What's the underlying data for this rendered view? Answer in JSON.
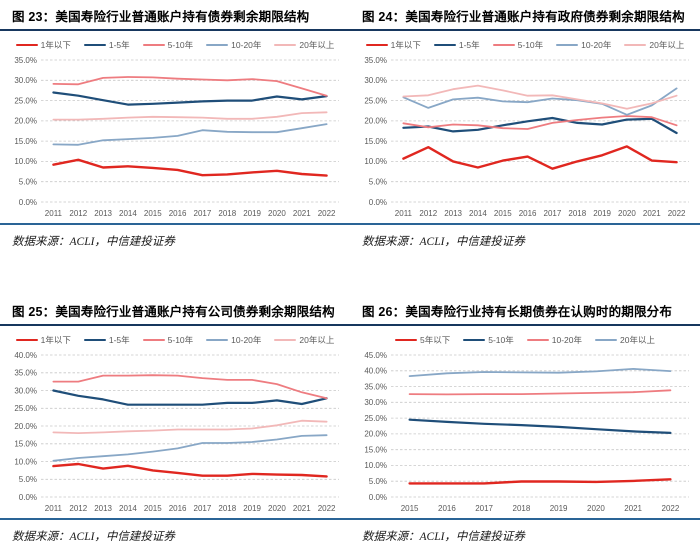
{
  "page": {
    "background": "#ffffff"
  },
  "figures": [
    {
      "title": "图 23：美国寿险行业普通账户持有债券剩余期限结构",
      "source": "数据来源：ACLI，中信建投证券"
    },
    {
      "title": "图 24：美国寿险行业普通账户持有政府债券剩余期限结构",
      "source": "数据来源：ACLI，中信建投证券"
    },
    {
      "title": "图 25：美国寿险行业普通账户持有公司债券剩余期限结构",
      "source": "数据来源：ACLI，中信建投证券"
    },
    {
      "title": "图 26：美国寿险行业持有长期债券在认购时的期限分布",
      "source": "数据来源：ACLI，中信建投证券"
    }
  ],
  "colors": {
    "red": "#e02720",
    "navy": "#1f4e79",
    "salmon": "#ee7c80",
    "grayblue": "#88a7c6",
    "pink": "#f2b8b8",
    "title_rule": "#17375e",
    "bottom_rule": "#2a6496",
    "grid": "#c8c8c8",
    "tick_text": "#595959"
  },
  "chart_data": [
    {
      "type": "line",
      "title": "美国寿险行业普通账户持有债券剩余期限结构",
      "xlabel": "",
      "ylabel": "",
      "x": [
        2011,
        2012,
        2013,
        2014,
        2015,
        2016,
        2017,
        2018,
        2019,
        2020,
        2021,
        2022
      ],
      "ylim": [
        0,
        35
      ],
      "ytick_step": 5,
      "grid": true,
      "legend_position": "top",
      "series": [
        {
          "name": "1年以下",
          "color_key": "red",
          "width": 2.4,
          "values": [
            9.2,
            10.4,
            8.5,
            8.8,
            8.4,
            7.9,
            6.6,
            6.8,
            7.3,
            7.7,
            6.9,
            6.5
          ]
        },
        {
          "name": "1-5年",
          "color_key": "navy",
          "width": 2.2,
          "values": [
            27.0,
            26.2,
            25.1,
            24.0,
            24.2,
            24.5,
            24.8,
            25.0,
            25.0,
            26.0,
            25.3,
            26.1
          ]
        },
        {
          "name": "5-10年",
          "color_key": "salmon",
          "width": 1.8,
          "values": [
            29.1,
            29.0,
            30.6,
            30.8,
            30.7,
            30.4,
            30.2,
            30.0,
            30.3,
            29.8,
            28.0,
            26.2
          ]
        },
        {
          "name": "10-20年",
          "color_key": "grayblue",
          "width": 1.8,
          "values": [
            14.2,
            14.1,
            15.2,
            15.5,
            15.8,
            16.3,
            17.7,
            17.3,
            17.2,
            17.2,
            18.2,
            19.2
          ]
        },
        {
          "name": "20年以上",
          "color_key": "pink",
          "width": 1.8,
          "values": [
            20.3,
            20.3,
            20.5,
            20.8,
            21.0,
            20.9,
            20.8,
            20.5,
            20.5,
            21.0,
            21.9,
            22.1
          ]
        }
      ]
    },
    {
      "type": "line",
      "title": "美国寿险行业普通账户持有政府债券剩余期限结构",
      "xlabel": "",
      "ylabel": "",
      "x": [
        2011,
        2012,
        2013,
        2014,
        2015,
        2016,
        2017,
        2018,
        2019,
        2020,
        2021,
        2022
      ],
      "ylim": [
        0,
        35
      ],
      "ytick_step": 5,
      "grid": true,
      "legend_position": "top",
      "series": [
        {
          "name": "1年以下",
          "color_key": "red",
          "width": 2.4,
          "values": [
            10.7,
            13.5,
            10.0,
            8.5,
            10.2,
            11.2,
            8.2,
            10.0,
            11.5,
            13.7,
            10.2,
            9.8
          ]
        },
        {
          "name": "1-5年",
          "color_key": "navy",
          "width": 2.2,
          "values": [
            18.3,
            18.6,
            17.4,
            17.8,
            18.9,
            19.9,
            20.7,
            19.5,
            19.1,
            20.3,
            20.5,
            17.0
          ]
        },
        {
          "name": "5-10年",
          "color_key": "salmon",
          "width": 1.8,
          "values": [
            19.4,
            18.4,
            19.1,
            18.9,
            18.2,
            18.0,
            19.5,
            20.2,
            20.8,
            21.2,
            20.9,
            18.9
          ]
        },
        {
          "name": "10-20年",
          "color_key": "grayblue",
          "width": 1.8,
          "values": [
            25.8,
            23.2,
            25.3,
            25.7,
            24.8,
            24.6,
            25.5,
            25.1,
            24.2,
            21.5,
            23.8,
            28.0
          ]
        },
        {
          "name": "20年以上",
          "color_key": "pink",
          "width": 1.8,
          "values": [
            26.0,
            26.3,
            27.8,
            28.7,
            27.5,
            26.2,
            26.3,
            25.3,
            24.3,
            23.0,
            24.3,
            26.2
          ]
        }
      ]
    },
    {
      "type": "line",
      "title": "美国寿险行业普通账户持有公司债券剩余期限结构",
      "xlabel": "",
      "ylabel": "",
      "x": [
        2011,
        2012,
        2013,
        2014,
        2015,
        2016,
        2017,
        2018,
        2019,
        2020,
        2021,
        2022
      ],
      "ylim": [
        0,
        40
      ],
      "ytick_step": 5,
      "grid": true,
      "legend_position": "top",
      "series": [
        {
          "name": "1年以下",
          "color_key": "red",
          "width": 2.4,
          "values": [
            8.7,
            9.3,
            8.0,
            8.8,
            7.5,
            6.8,
            6.0,
            6.0,
            6.5,
            6.3,
            6.2,
            5.8
          ]
        },
        {
          "name": "1-5年",
          "color_key": "navy",
          "width": 2.2,
          "values": [
            30.0,
            28.5,
            27.5,
            26.0,
            26.0,
            26.0,
            26.0,
            26.5,
            26.5,
            27.2,
            26.2,
            27.8
          ]
        },
        {
          "name": "5-10年",
          "color_key": "salmon",
          "width": 1.8,
          "values": [
            32.5,
            32.5,
            34.2,
            34.2,
            34.3,
            34.2,
            33.5,
            33.0,
            33.0,
            31.8,
            29.5,
            27.8
          ]
        },
        {
          "name": "10-20年",
          "color_key": "grayblue",
          "width": 1.8,
          "values": [
            10.2,
            11.0,
            11.5,
            12.0,
            12.8,
            13.7,
            15.2,
            15.2,
            15.5,
            16.2,
            17.2,
            17.4
          ]
        },
        {
          "name": "20年以上",
          "color_key": "pink",
          "width": 1.8,
          "values": [
            18.2,
            18.0,
            18.2,
            18.5,
            18.7,
            19.0,
            19.0,
            19.0,
            19.3,
            20.2,
            21.5,
            21.2
          ]
        }
      ]
    },
    {
      "type": "line",
      "title": "美国寿险行业持有长期债券在认购时的期限分布",
      "xlabel": "",
      "ylabel": "",
      "x": [
        2015,
        2016,
        2017,
        2018,
        2019,
        2020,
        2021,
        2022
      ],
      "ylim": [
        0,
        45
      ],
      "ytick_step": 5,
      "grid": true,
      "legend_position": "top",
      "series": [
        {
          "name": "5年以下",
          "color_key": "red",
          "width": 2.4,
          "values": [
            4.3,
            4.3,
            4.3,
            4.9,
            4.9,
            4.8,
            5.1,
            5.6
          ]
        },
        {
          "name": "5-10年",
          "color_key": "navy",
          "width": 2.2,
          "values": [
            24.5,
            23.8,
            23.2,
            22.8,
            22.2,
            21.5,
            20.8,
            20.3
          ]
        },
        {
          "name": "10-20年",
          "color_key": "salmon",
          "width": 1.8,
          "values": [
            32.6,
            32.5,
            32.6,
            32.6,
            32.8,
            33.0,
            33.2,
            33.8
          ]
        },
        {
          "name": "20年以上",
          "color_key": "grayblue",
          "width": 1.8,
          "values": [
            38.3,
            39.2,
            39.6,
            39.5,
            39.4,
            39.8,
            40.6,
            39.9
          ]
        }
      ]
    }
  ]
}
